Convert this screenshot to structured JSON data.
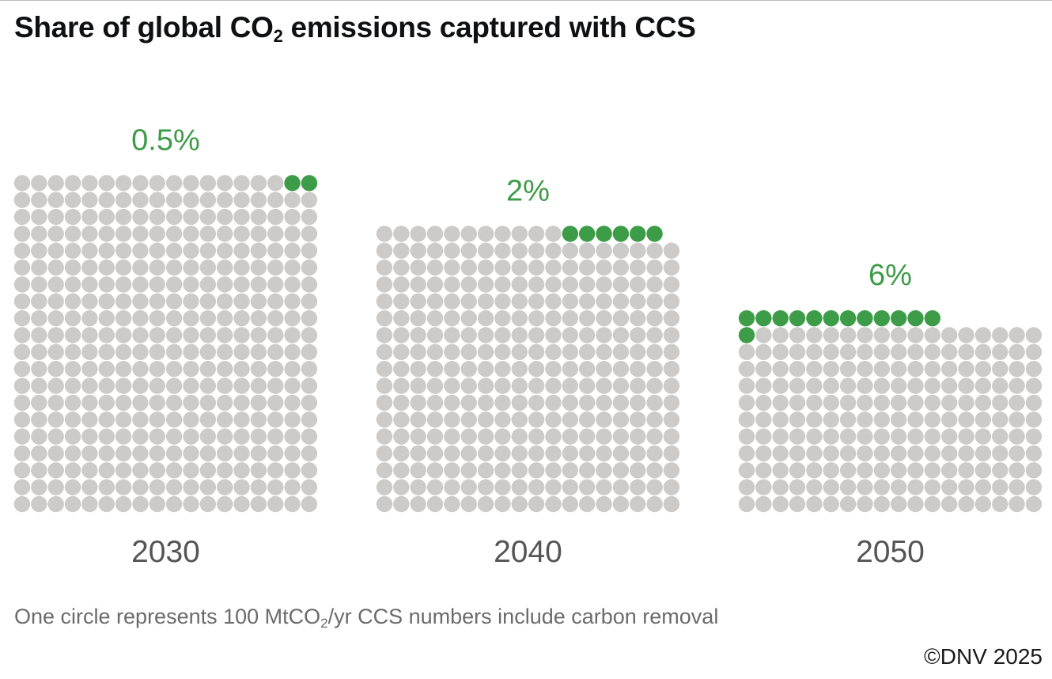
{
  "title": {
    "pre": "Share of global CO",
    "sub": "2",
    "post": " emissions captured with CCS"
  },
  "footnote": {
    "pre": "One circle represents 100 MtCO",
    "sub": "2",
    "post": "/yr CCS numbers include carbon removal"
  },
  "copyright": "©DNV 2025",
  "colors": {
    "captured": "#3d9c47",
    "emissions": "#cccbca",
    "label": "#3d9c47",
    "year": "#555555"
  },
  "chart_data": {
    "type": "waffle",
    "unit": "100 MtCO2/yr per circle",
    "columns": 18,
    "panels": [
      {
        "year": "2030",
        "label": "0.5%",
        "total_circles": 360,
        "captured_circles": 2
      },
      {
        "year": "2040",
        "label": "2%",
        "total_circles": 305,
        "captured_circles": 6
      },
      {
        "year": "2050",
        "label": "6%",
        "total_circles": 210,
        "captured_circles": 13
      }
    ]
  }
}
